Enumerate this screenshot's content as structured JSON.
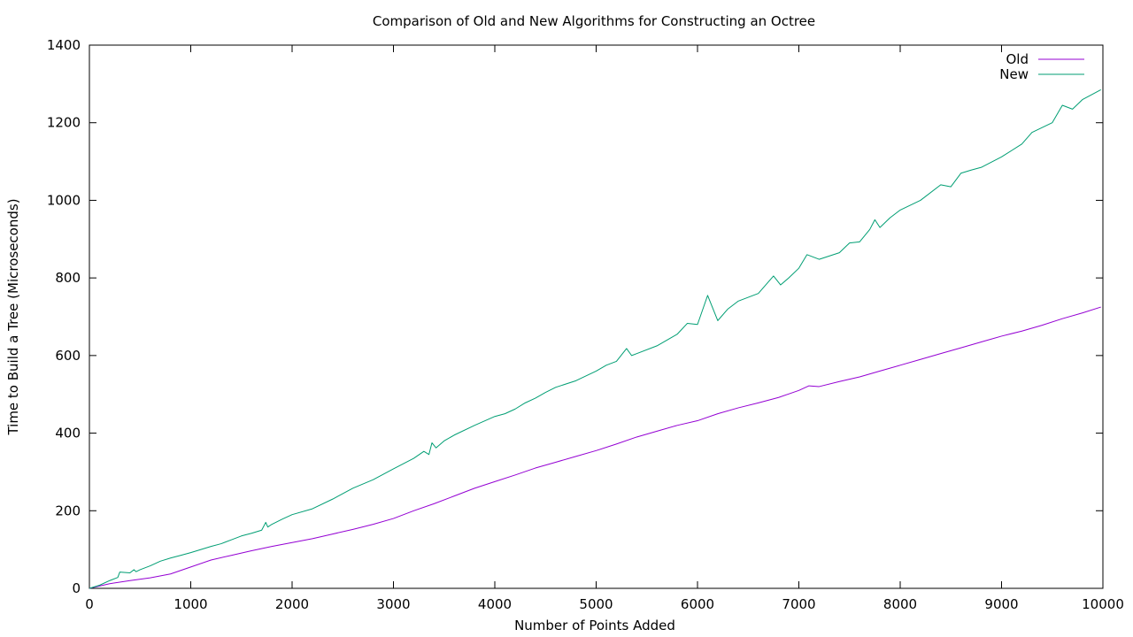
{
  "chart_data": {
    "type": "line",
    "title": "Comparison of Old and New Algorithms for Constructing an Octree",
    "xlabel": "Number of Points Added",
    "ylabel": "Time to Build a Tree (Microseconds)",
    "xlim": [
      0,
      10000
    ],
    "ylim": [
      0,
      1400
    ],
    "xticks": [
      "0",
      "1000",
      "2000",
      "3000",
      "4000",
      "5000",
      "6000",
      "7000",
      "8000",
      "9000",
      "10000"
    ],
    "yticks": [
      "0",
      "200",
      "400",
      "600",
      "800",
      "1000",
      "1200",
      "1400"
    ],
    "grid": false,
    "legend_position": "top-right",
    "series": [
      {
        "name": "Old",
        "color": "#9400d3",
        "x": [
          0,
          200,
          400,
          600,
          800,
          1000,
          1200,
          1400,
          1600,
          1800,
          2000,
          2200,
          2400,
          2600,
          2800,
          3000,
          3200,
          3400,
          3600,
          3800,
          4000,
          4200,
          4400,
          4600,
          4800,
          5000,
          5200,
          5400,
          5600,
          5800,
          6000,
          6200,
          6400,
          6600,
          6800,
          7000,
          7100,
          7200,
          7400,
          7600,
          7800,
          8000,
          8200,
          8400,
          8600,
          8800,
          9000,
          9200,
          9400,
          9600,
          9800,
          9980
        ],
        "y": [
          0,
          12,
          20,
          27,
          37,
          55,
          73,
          85,
          97,
          108,
          118,
          128,
          140,
          152,
          165,
          180,
          200,
          218,
          238,
          258,
          275,
          292,
          310,
          325,
          340,
          355,
          372,
          390,
          405,
          420,
          432,
          450,
          465,
          478,
          492,
          510,
          522,
          520,
          533,
          545,
          560,
          575,
          590,
          605,
          620,
          635,
          650,
          663,
          678,
          695,
          710,
          725
        ]
      },
      {
        "name": "New",
        "color": "#009e73",
        "x": [
          0,
          100,
          200,
          280,
          300,
          400,
          440,
          460,
          500,
          600,
          700,
          800,
          900,
          1000,
          1100,
          1200,
          1300,
          1400,
          1500,
          1600,
          1700,
          1740,
          1760,
          1800,
          1900,
          2000,
          2200,
          2400,
          2600,
          2800,
          3000,
          3200,
          3300,
          3350,
          3380,
          3420,
          3500,
          3600,
          3800,
          4000,
          4100,
          4200,
          4300,
          4400,
          4500,
          4600,
          4800,
          5000,
          5100,
          5200,
          5300,
          5350,
          5400,
          5600,
          5800,
          5900,
          6000,
          6100,
          6200,
          6300,
          6400,
          6500,
          6600,
          6750,
          6820,
          6900,
          7000,
          7080,
          7200,
          7400,
          7500,
          7600,
          7700,
          7750,
          7800,
          7900,
          8000,
          8200,
          8400,
          8500,
          8600,
          8700,
          8800,
          9000,
          9200,
          9300,
          9500,
          9600,
          9700,
          9800,
          9980
        ],
        "y": [
          0,
          8,
          20,
          28,
          42,
          40,
          48,
          43,
          48,
          58,
          70,
          78,
          85,
          92,
          100,
          108,
          115,
          125,
          135,
          142,
          150,
          170,
          158,
          165,
          178,
          190,
          205,
          230,
          258,
          280,
          308,
          335,
          353,
          345,
          375,
          362,
          380,
          395,
          420,
          443,
          450,
          462,
          478,
          490,
          505,
          518,
          535,
          560,
          575,
          585,
          618,
          600,
          605,
          625,
          655,
          683,
          680,
          755,
          690,
          720,
          740,
          750,
          760,
          805,
          782,
          800,
          825,
          860,
          848,
          865,
          890,
          893,
          925,
          950,
          930,
          955,
          975,
          1000,
          1040,
          1035,
          1070,
          1078,
          1085,
          1112,
          1145,
          1175,
          1200,
          1245,
          1235,
          1260,
          1285
        ]
      }
    ]
  }
}
